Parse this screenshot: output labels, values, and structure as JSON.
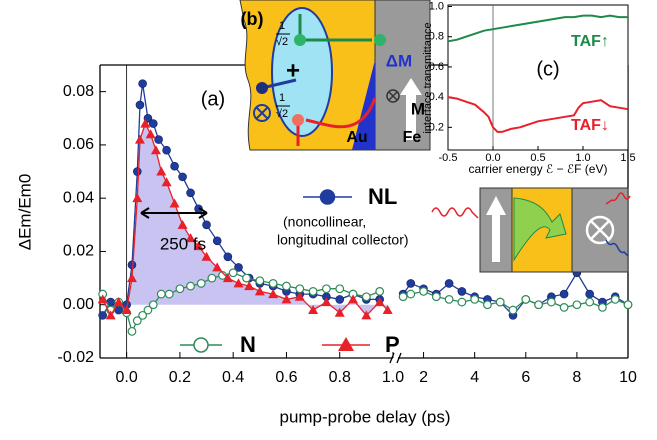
{
  "chart_data": [
    {
      "type": "line",
      "x_label": "pump-probe delay (ps)",
      "y_label": "ΔEm/Em0",
      "xlim": [
        -0.1,
        10
      ],
      "xbreak": 1,
      "xticks": [
        {
          "value": 0,
          "label": "0.0"
        },
        {
          "value": 0.2,
          "label": "0.2"
        },
        {
          "value": 0.4,
          "label": "0.4"
        },
        {
          "value": 0.6,
          "label": "0.6"
        },
        {
          "value": 0.8,
          "label": "0.8"
        },
        {
          "value": 1,
          "label": "1.0"
        },
        2,
        4,
        6,
        8,
        10
      ],
      "ylim": [
        -0.02,
        0.09
      ],
      "yticks": [
        -0.02,
        {
          "value": 0,
          "label": "0.00"
        },
        0.02,
        0.04,
        0.06,
        0.08
      ],
      "series": [
        {
          "name": "NL",
          "color": "#1f3c9e",
          "marker": "circle",
          "x": [
            -0.09,
            -0.06,
            -0.03,
            0.0,
            0.02,
            0.04,
            0.05,
            0.06,
            0.08,
            0.1,
            0.12,
            0.15,
            0.18,
            0.21,
            0.24,
            0.27,
            0.3,
            0.34,
            0.38,
            0.42,
            0.46,
            0.5,
            0.55,
            0.6,
            0.65,
            0.7,
            0.75,
            0.8,
            0.85,
            0.9,
            0.95,
            1.0,
            1.2,
            1.5,
            2,
            2.5,
            3,
            3.5,
            4,
            4.5,
            5,
            5.5,
            6,
            6.5,
            7,
            7.5,
            8,
            8.5,
            9,
            9.5,
            10
          ],
          "values": [
            -0.004,
            0.001,
            -0.002,
            0.0,
            0.015,
            0.05,
            0.075,
            0.083,
            0.07,
            0.068,
            0.062,
            0.058,
            0.052,
            0.048,
            0.042,
            0.036,
            0.03,
            0.024,
            0.018,
            0.014,
            0.01,
            0.008,
            0.007,
            0.005,
            0.004,
            0.004,
            0.003,
            0.002,
            0.004,
            0.002,
            0.002,
            null,
            0.004,
            0.008,
            0.006,
            0.004,
            0.008,
            0.005,
            0.003,
            0.002,
            0.001,
            -0.004,
            0.002,
            0.0,
            0.003,
            0.004,
            0.012,
            0.004,
            0.001,
            0.003,
            0.0
          ]
        },
        {
          "name": "N",
          "color": "#2e8b57",
          "marker": "open-circle",
          "x": [
            -0.09,
            -0.06,
            -0.03,
            0.0,
            0.02,
            0.04,
            0.06,
            0.08,
            0.1,
            0.13,
            0.16,
            0.2,
            0.24,
            0.28,
            0.32,
            0.36,
            0.4,
            0.45,
            0.5,
            0.55,
            0.6,
            0.65,
            0.7,
            0.75,
            0.8,
            0.85,
            0.9,
            0.95,
            1.0,
            1.2,
            1.5,
            2,
            2.5,
            3,
            3.5,
            4,
            4.5,
            5,
            5.5,
            6,
            6.5,
            7,
            7.5,
            8,
            8.5,
            9,
            9.5,
            10
          ],
          "values": [
            0.004,
            -0.002,
            0.001,
            -0.003,
            -0.01,
            -0.006,
            -0.004,
            -0.002,
            0.0,
            0.004,
            0.004,
            0.006,
            0.007,
            0.008,
            0.01,
            0.011,
            0.012,
            0.01,
            0.009,
            0.008,
            0.007,
            0.006,
            0.005,
            0.006,
            0.006,
            0.004,
            0.003,
            0.005,
            null,
            0.003,
            0.004,
            0.005,
            0.003,
            0.002,
            0.001,
            0.002,
            0.0,
            0.001,
            -0.002,
            0.002,
            0.0,
            0.001,
            -0.001,
            0.0,
            0.001,
            -0.001,
            0.002,
            0.0
          ]
        },
        {
          "name": "P",
          "color": "#e8202a",
          "marker": "triangle",
          "fill": "#c9c3f2",
          "x": [
            -0.09,
            -0.06,
            -0.03,
            0.0,
            0.02,
            0.04,
            0.05,
            0.07,
            0.09,
            0.11,
            0.13,
            0.15,
            0.18,
            0.21,
            0.24,
            0.27,
            0.3,
            0.34,
            0.38,
            0.42,
            0.46,
            0.5,
            0.55,
            0.6,
            0.65,
            0.7,
            0.75,
            0.8,
            0.85,
            0.9,
            0.95,
            0.98
          ],
          "values": [
            0.002,
            -0.004,
            0.001,
            -0.002,
            0.01,
            0.04,
            0.062,
            0.068,
            0.064,
            0.058,
            0.05,
            0.046,
            0.038,
            0.03,
            0.025,
            0.022,
            0.018,
            0.014,
            0.01,
            0.008,
            0.007,
            0.005,
            0.004,
            0.002,
            0.003,
            -0.002,
            0.001,
            -0.003,
            0.002,
            -0.004,
            0.001,
            -0.002
          ]
        }
      ],
      "annotations": [
        "(a)",
        "250 fs",
        "(noncollinear,",
        "longitudinal collector)",
        "(b)",
        "1",
        "√2",
        "1",
        "√2",
        "+",
        "ΔM",
        "M",
        "Au",
        "Fe"
      ]
    },
    {
      "type": "line",
      "x_label": "carrier energy ℰ − ℰF (eV)",
      "y_label": "interface transmittance",
      "xlim": [
        -0.5,
        1.5
      ],
      "xticks": [
        -0.5,
        {
          "value": 0,
          "label": "0.0"
        },
        0.5,
        {
          "value": 1,
          "label": "1.0"
        },
        1.5
      ],
      "ylim": [
        0.05,
        1.01
      ],
      "yticks": [
        0.2,
        0.4,
        0.6,
        0.8,
        {
          "value": 1,
          "label": "1.0"
        }
      ],
      "series": [
        {
          "name": "TAF↑",
          "color": "#1e8a4a",
          "x": [
            -0.5,
            -0.4,
            -0.3,
            -0.2,
            -0.1,
            0.0,
            0.1,
            0.2,
            0.3,
            0.4,
            0.5,
            0.6,
            0.7,
            0.8,
            0.9,
            1.0,
            1.1,
            1.2,
            1.3,
            1.4,
            1.5
          ],
          "values": [
            0.77,
            0.78,
            0.8,
            0.82,
            0.84,
            0.85,
            0.86,
            0.87,
            0.88,
            0.89,
            0.9,
            0.91,
            0.92,
            0.93,
            0.93,
            0.94,
            0.94,
            0.93,
            0.94,
            0.93,
            0.93
          ]
        },
        {
          "name": "TAF↓",
          "color": "#e8202a",
          "x": [
            -0.5,
            -0.4,
            -0.3,
            -0.2,
            -0.1,
            -0.05,
            0.0,
            0.05,
            0.1,
            0.2,
            0.3,
            0.4,
            0.5,
            0.6,
            0.7,
            0.8,
            0.9,
            0.95,
            1.0,
            1.1,
            1.2,
            1.3,
            1.4,
            1.5
          ],
          "values": [
            0.4,
            0.39,
            0.37,
            0.35,
            0.3,
            0.27,
            0.2,
            0.17,
            0.17,
            0.19,
            0.2,
            0.22,
            0.24,
            0.25,
            0.26,
            0.27,
            0.28,
            0.33,
            0.36,
            0.37,
            0.38,
            0.34,
            0.33,
            0.32
          ]
        }
      ],
      "annotations": [
        "(c)"
      ]
    }
  ]
}
